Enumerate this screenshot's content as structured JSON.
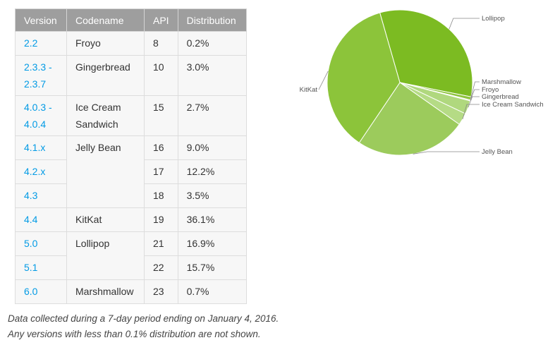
{
  "table": {
    "headers": [
      "Version",
      "Codename",
      "API",
      "Distribution"
    ],
    "groups": [
      {
        "codename": "Froyo",
        "rows": [
          {
            "version": "2.2",
            "api": "8",
            "dist": "0.2%"
          }
        ]
      },
      {
        "codename": "Gingerbread",
        "rows": [
          {
            "version": "2.3.3 - 2.3.7",
            "api": "10",
            "dist": "3.0%"
          }
        ]
      },
      {
        "codename": "Ice Cream Sandwich",
        "rows": [
          {
            "version": "4.0.3 - 4.0.4",
            "api": "15",
            "dist": "2.7%"
          }
        ]
      },
      {
        "codename": "Jelly Bean",
        "rows": [
          {
            "version": "4.1.x",
            "api": "16",
            "dist": "9.0%"
          },
          {
            "version": "4.2.x",
            "api": "17",
            "dist": "12.2%"
          },
          {
            "version": "4.3",
            "api": "18",
            "dist": "3.5%"
          }
        ]
      },
      {
        "codename": "KitKat",
        "rows": [
          {
            "version": "4.4",
            "api": "19",
            "dist": "36.1%"
          }
        ]
      },
      {
        "codename": "Lollipop",
        "rows": [
          {
            "version": "5.0",
            "api": "21",
            "dist": "16.9%"
          },
          {
            "version": "5.1",
            "api": "22",
            "dist": "15.7%"
          }
        ]
      },
      {
        "codename": "Marshmallow",
        "rows": [
          {
            "version": "6.0",
            "api": "23",
            "dist": "0.7%"
          }
        ]
      }
    ]
  },
  "notes": [
    "Data collected during a 7-day period ending on January 4, 2016.",
    "Any versions with less than 0.1% distribution are not shown."
  ],
  "chart_data": {
    "type": "pie",
    "slices": [
      {
        "label": "Lollipop",
        "value": 32.6,
        "color": "#7cbb22"
      },
      {
        "label": "Marshmallow",
        "value": 0.7,
        "color": "#8ec43e"
      },
      {
        "label": "Froyo",
        "value": 0.2,
        "color": "#a6d16c"
      },
      {
        "label": "Gingerbread",
        "value": 3.0,
        "color": "#b0d87e"
      },
      {
        "label": "Ice Cream Sandwich",
        "value": 2.7,
        "color": "#b5db85"
      },
      {
        "label": "Jelly Bean",
        "value": 24.7,
        "color": "#9ccb5c"
      },
      {
        "label": "KitKat",
        "value": 36.1,
        "color": "#8cc43a"
      }
    ]
  }
}
